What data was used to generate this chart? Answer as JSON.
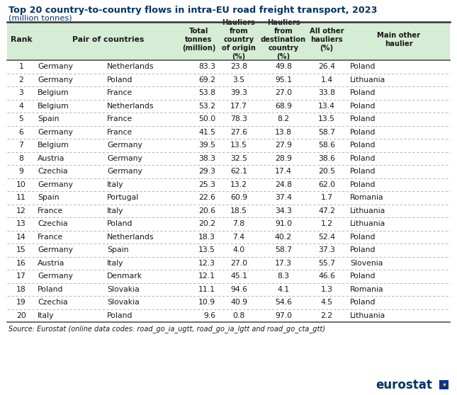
{
  "title": "Top 20 country-to-country flows in intra-EU road freight transport, 2023",
  "subtitle": "(million tonnes)",
  "source": "Source: Eurostat (online data codes: road_go_ia_ugtt, road_go_ia_lgtt and road_go_cta_gtt)",
  "header_bg": "#d5ecd5",
  "header_text_color": "#1a1a1a",
  "text_color": "#1a1a1a",
  "title_color": "#003366",
  "subtitle_color": "#003366",
  "dashed_line_color": "#aaaaaa",
  "solid_line_color": "#555555",
  "rows": [
    [
      1,
      "Germany",
      "Netherlands",
      "83.3",
      "23.8",
      "49.8",
      "26.4",
      "Poland"
    ],
    [
      2,
      "Germany",
      "Poland",
      "69.2",
      "3.5",
      "95.1",
      "1.4",
      "Lithuania"
    ],
    [
      3,
      "Belgium",
      "France",
      "53.8",
      "39.3",
      "27.0",
      "33.8",
      "Poland"
    ],
    [
      4,
      "Belgium",
      "Netherlands",
      "53.2",
      "17.7",
      "68.9",
      "13.4",
      "Poland"
    ],
    [
      5,
      "Spain",
      "France",
      "50.0",
      "78.3",
      "8.2",
      "13.5",
      "Poland"
    ],
    [
      6,
      "Germany",
      "France",
      "41.5",
      "27.6",
      "13.8",
      "58.7",
      "Poland"
    ],
    [
      7,
      "Belgium",
      "Germany",
      "39.5",
      "13.5",
      "27.9",
      "58.6",
      "Poland"
    ],
    [
      8,
      "Austria",
      "Germany",
      "38.3",
      "32.5",
      "28.9",
      "38.6",
      "Poland"
    ],
    [
      9,
      "Czechia",
      "Germany",
      "29.3",
      "62.1",
      "17.4",
      "20.5",
      "Poland"
    ],
    [
      10,
      "Germany",
      "Italy",
      "25.3",
      "13.2",
      "24.8",
      "62.0",
      "Poland"
    ],
    [
      11,
      "Spain",
      "Portugal",
      "22.6",
      "60.9",
      "37.4",
      "1.7",
      "Romania"
    ],
    [
      12,
      "France",
      "Italy",
      "20.6",
      "18.5",
      "34.3",
      "47.2",
      "Lithuania"
    ],
    [
      13,
      "Czechia",
      "Poland",
      "20.2",
      "7.8",
      "91.0",
      "1.2",
      "Lithuania"
    ],
    [
      14,
      "France",
      "Netherlands",
      "18.3",
      "7.4",
      "40.2",
      "52.4",
      "Poland"
    ],
    [
      15,
      "Germany",
      "Spain",
      "13.5",
      "4.0",
      "58.7",
      "37.3",
      "Poland"
    ],
    [
      16,
      "Austria",
      "Italy",
      "12.3",
      "27.0",
      "17.3",
      "55.7",
      "Slovenia"
    ],
    [
      17,
      "Germany",
      "Denmark",
      "12.1",
      "45.1",
      "8.3",
      "46.6",
      "Poland"
    ],
    [
      18,
      "Poland",
      "Slovakia",
      "11.1",
      "94.6",
      "4.1",
      "1.3",
      "Romania"
    ],
    [
      19,
      "Czechia",
      "Slovakia",
      "10.9",
      "40.9",
      "54.6",
      "4.5",
      "Poland"
    ],
    [
      20,
      "Italy",
      "Poland",
      "9.6",
      "0.8",
      "97.0",
      "2.2",
      "Lithuania"
    ]
  ]
}
